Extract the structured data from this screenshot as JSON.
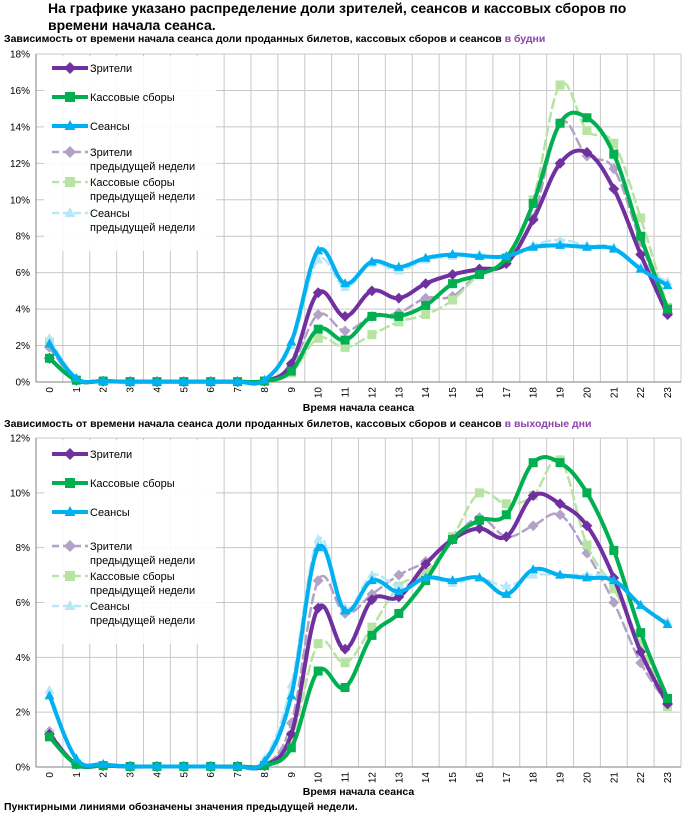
{
  "heading": "На графике указано распределение доли зрителей, сеансов и кассовых сборов по времени начала сеанса.",
  "footnote": "Пунктирными линиями обозначены значения предыдущей недели.",
  "colors": {
    "viewers": "#7030a0",
    "viewers_prev": "#b3a2c7",
    "box_office": "#00b050",
    "box_office_prev": "#b7e4a3",
    "sessions": "#00b0f0",
    "sessions_prev": "#b7e7f7",
    "highlight": "#8e44ad"
  },
  "chart_data": [
    {
      "type": "line",
      "title": "Зависимость от времени начала сеанса доли проданных билетов, кассовых сборов и сеансов",
      "title_highlight": "в будни",
      "xlabel": "Время начала сеанса",
      "ylabel": "",
      "x": [
        "0",
        "1",
        "2",
        "3",
        "4",
        "5",
        "6",
        "7",
        "8",
        "9",
        "10",
        "11",
        "12",
        "13",
        "14",
        "15",
        "16",
        "17",
        "18",
        "19",
        "20",
        "21",
        "22",
        "23"
      ],
      "ylim": [
        0,
        18
      ],
      "yticks": [
        "0%",
        "2%",
        "4%",
        "6%",
        "8%",
        "10%",
        "12%",
        "14%",
        "16%",
        "18%"
      ],
      "grid": true,
      "legend_position": "top-left",
      "series": [
        {
          "name": "Зрители",
          "key": "viewers",
          "dashed": false,
          "marker": "diamond",
          "values": [
            1.3,
            0.1,
            0.05,
            0.02,
            0.02,
            0.02,
            0.02,
            0.02,
            0.05,
            1.0,
            4.9,
            3.6,
            5.0,
            4.6,
            5.4,
            5.9,
            6.2,
            6.5,
            8.9,
            12.0,
            12.6,
            10.6,
            7.0,
            3.7
          ]
        },
        {
          "name": "Кассовые сборы",
          "key": "box_office",
          "dashed": false,
          "marker": "square",
          "values": [
            1.3,
            0.1,
            0.05,
            0.02,
            0.02,
            0.02,
            0.02,
            0.02,
            0.05,
            0.6,
            2.9,
            2.3,
            3.6,
            3.6,
            4.2,
            5.4,
            5.9,
            6.8,
            9.8,
            14.2,
            14.5,
            12.5,
            8.0,
            4.0
          ]
        },
        {
          "name": "Сеансы",
          "key": "sessions",
          "dashed": false,
          "marker": "triangle",
          "values": [
            2.1,
            0.2,
            0.05,
            0.02,
            0.02,
            0.02,
            0.02,
            0.02,
            0.1,
            2.2,
            7.2,
            5.4,
            6.6,
            6.3,
            6.8,
            7.0,
            6.9,
            6.9,
            7.4,
            7.5,
            7.4,
            7.3,
            6.2,
            5.3
          ]
        },
        {
          "name": "Зрители предыдущей недели",
          "key": "viewers_prev",
          "dashed": true,
          "marker": "diamond",
          "values": [
            1.9,
            0.1,
            0.05,
            0.02,
            0.02,
            0.02,
            0.02,
            0.02,
            0.05,
            0.9,
            3.7,
            2.8,
            3.6,
            3.8,
            4.6,
            4.7,
            6.0,
            6.6,
            9.0,
            14.2,
            12.4,
            11.7,
            7.7,
            3.8
          ]
        },
        {
          "name": "Кассовые сборы предыдущей недели",
          "key": "box_office_prev",
          "dashed": true,
          "marker": "square",
          "values": [
            2.2,
            0.1,
            0.05,
            0.02,
            0.02,
            0.02,
            0.02,
            0.02,
            0.05,
            0.5,
            2.4,
            1.9,
            2.6,
            3.3,
            3.7,
            4.5,
            5.9,
            6.6,
            10.0,
            16.3,
            13.8,
            13.1,
            9.0,
            4.1
          ]
        },
        {
          "name": "Сеансы предыдущей недели",
          "key": "sessions_prev",
          "dashed": true,
          "marker": "triangle",
          "values": [
            2.4,
            0.2,
            0.05,
            0.02,
            0.02,
            0.02,
            0.02,
            0.02,
            0.1,
            2.0,
            6.7,
            5.2,
            6.5,
            6.1,
            6.7,
            6.9,
            7.0,
            6.8,
            7.5,
            7.8,
            7.5,
            7.4,
            6.3,
            5.5
          ]
        }
      ]
    },
    {
      "type": "line",
      "title": "Зависимость от времени начала сеанса доли проданных билетов, кассовых сборов и сеансов",
      "title_highlight": "в выходные дни",
      "xlabel": "Время начала сеанса",
      "ylabel": "",
      "x": [
        "0",
        "1",
        "2",
        "3",
        "4",
        "5",
        "6",
        "7",
        "8",
        "9",
        "10",
        "11",
        "12",
        "13",
        "14",
        "15",
        "16",
        "17",
        "18",
        "19",
        "20",
        "21",
        "22",
        "23"
      ],
      "ylim": [
        0,
        12
      ],
      "yticks": [
        "0%",
        "2%",
        "4%",
        "6%",
        "8%",
        "10%",
        "12%"
      ],
      "grid": true,
      "legend_position": "top-left",
      "series": [
        {
          "name": "Зрители",
          "key": "viewers",
          "dashed": false,
          "marker": "diamond",
          "values": [
            1.2,
            0.1,
            0.05,
            0.02,
            0.02,
            0.02,
            0.02,
            0.02,
            0.05,
            1.2,
            5.8,
            4.3,
            6.1,
            6.2,
            7.4,
            8.3,
            8.7,
            8.4,
            9.9,
            9.6,
            8.8,
            6.9,
            4.2,
            2.3
          ]
        },
        {
          "name": "Кассовые сборы",
          "key": "box_office",
          "dashed": false,
          "marker": "square",
          "values": [
            1.1,
            0.1,
            0.05,
            0.02,
            0.02,
            0.02,
            0.02,
            0.02,
            0.05,
            0.7,
            3.5,
            2.9,
            4.8,
            5.6,
            6.8,
            8.3,
            9.0,
            9.2,
            11.1,
            11.1,
            10.0,
            7.9,
            4.9,
            2.5
          ]
        },
        {
          "name": "Сеансы",
          "key": "sessions",
          "dashed": false,
          "marker": "triangle",
          "values": [
            2.6,
            0.3,
            0.1,
            0.02,
            0.02,
            0.02,
            0.02,
            0.02,
            0.2,
            2.6,
            8.0,
            5.7,
            6.8,
            6.4,
            6.9,
            6.8,
            6.9,
            6.3,
            7.2,
            7.0,
            6.9,
            6.8,
            5.9,
            5.2
          ]
        },
        {
          "name": "Зрители предыдущей недели",
          "key": "viewers_prev",
          "dashed": true,
          "marker": "diamond",
          "values": [
            1.3,
            0.1,
            0.05,
            0.02,
            0.02,
            0.02,
            0.02,
            0.02,
            0.05,
            1.6,
            6.8,
            5.6,
            6.3,
            7.0,
            7.5,
            8.3,
            9.1,
            8.4,
            8.8,
            9.2,
            7.8,
            6.0,
            3.8,
            2.3
          ]
        },
        {
          "name": "Кассовые сборы предыдущей недели",
          "key": "box_office_prev",
          "dashed": true,
          "marker": "square",
          "values": [
            1.2,
            0.1,
            0.05,
            0.02,
            0.02,
            0.02,
            0.02,
            0.02,
            0.05,
            1.0,
            4.5,
            3.8,
            5.1,
            6.6,
            7.1,
            8.4,
            10.0,
            9.6,
            9.9,
            11.2,
            8.1,
            6.5,
            4.5,
            2.2
          ]
        },
        {
          "name": "Сеансы предыдущей недели",
          "key": "sessions_prev",
          "dashed": true,
          "marker": "triangle",
          "values": [
            2.8,
            0.3,
            0.1,
            0.02,
            0.02,
            0.02,
            0.02,
            0.02,
            0.3,
            3.0,
            8.3,
            5.8,
            7.0,
            6.6,
            6.9,
            6.7,
            6.9,
            6.6,
            7.0,
            7.0,
            7.0,
            6.9,
            5.9,
            5.3
          ]
        }
      ]
    }
  ]
}
